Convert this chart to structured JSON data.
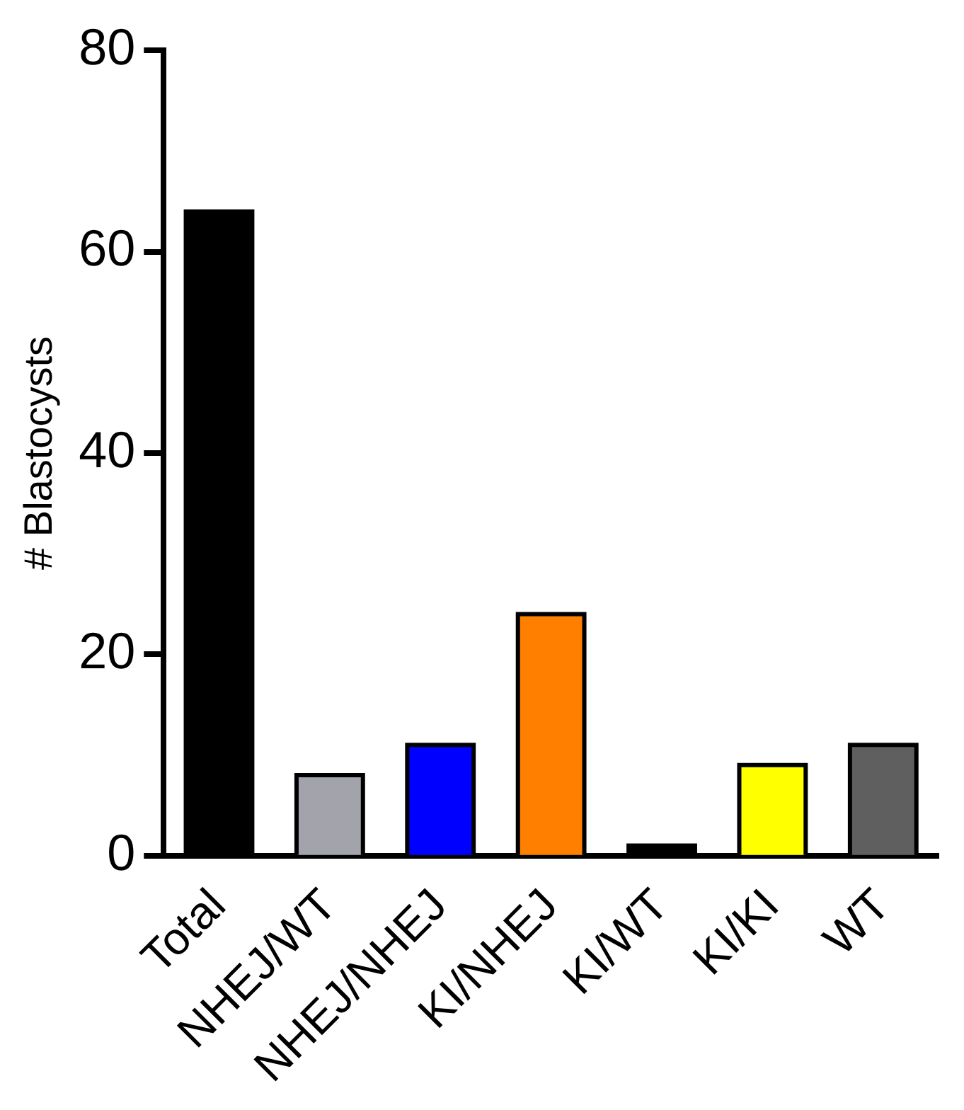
{
  "chart_data": {
    "type": "bar",
    "ylabel": "# Blastocysts",
    "categories": [
      "Total",
      "NHEJ/WT",
      "NHEJ/NHEJ",
      "KI/NHEJ",
      "KI/WT",
      "KI/KI",
      "WT"
    ],
    "values": [
      64,
      8,
      11,
      24,
      1,
      9,
      11
    ],
    "colors": [
      "#000000",
      "#a3a3ab",
      "#0000ff",
      "#ff7f00",
      "#000000",
      "#ffff00",
      "#5f5f5f"
    ],
    "ylim": [
      0,
      80
    ],
    "yticks": [
      0,
      20,
      40,
      60,
      80
    ],
    "grid": false,
    "legend": false
  }
}
